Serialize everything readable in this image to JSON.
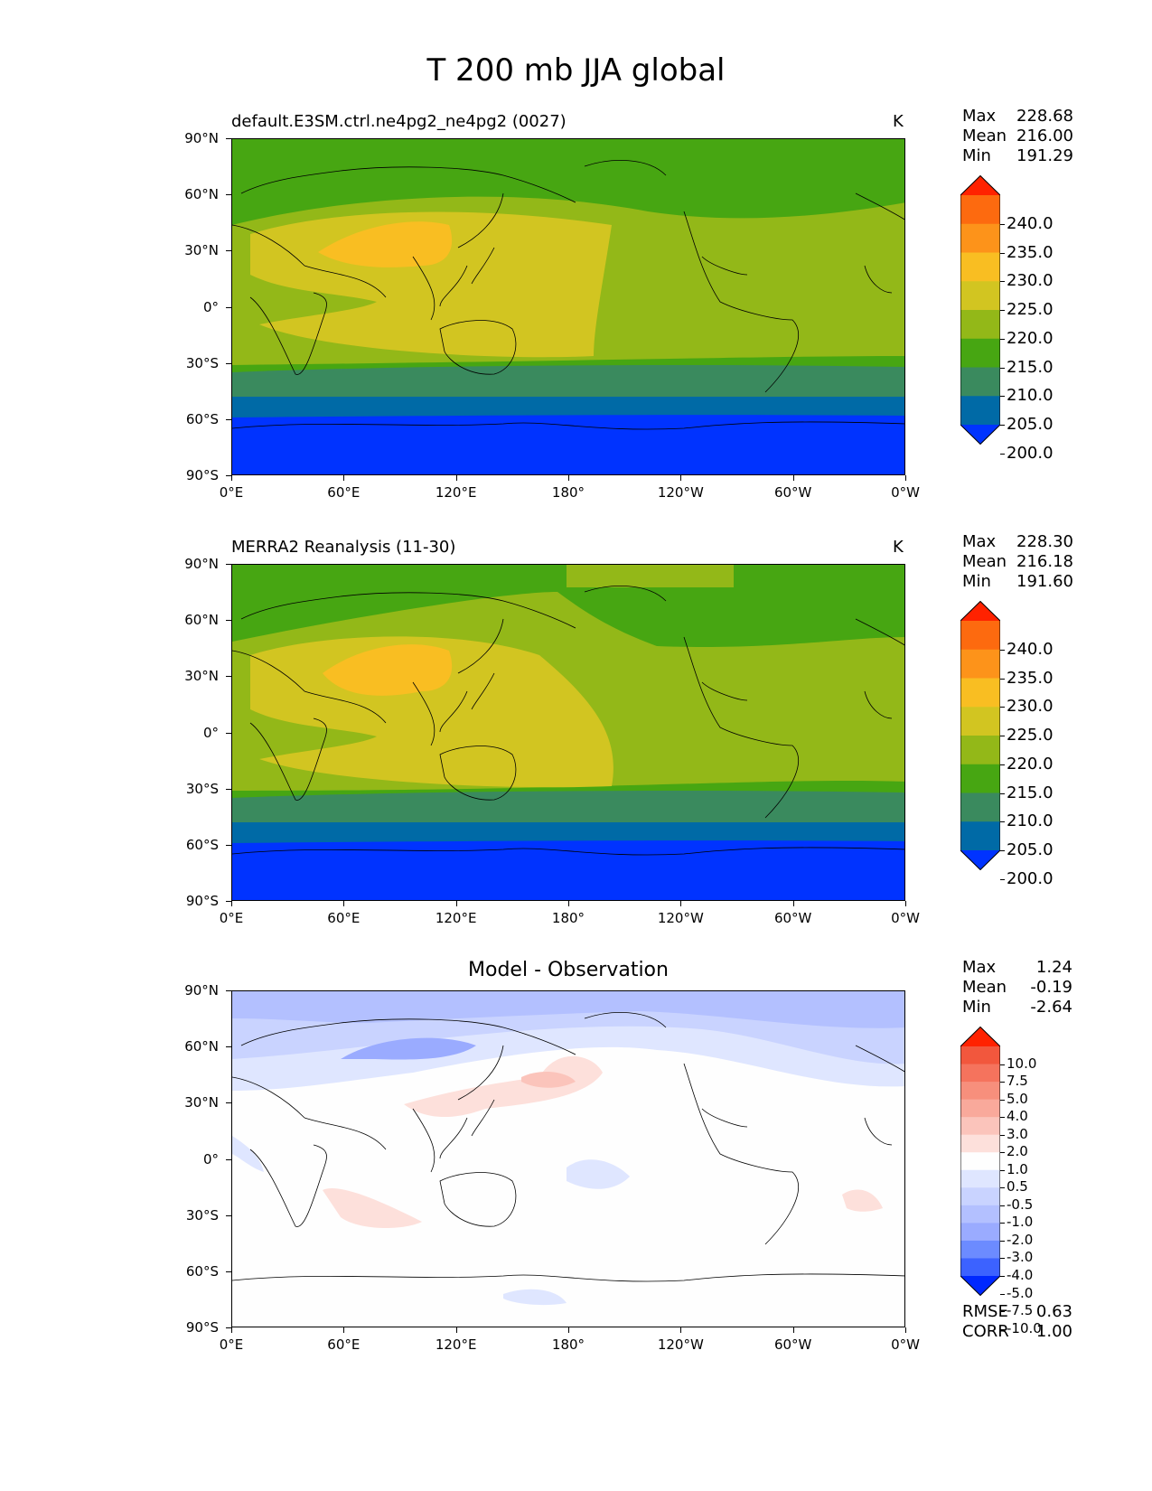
{
  "figure": {
    "title": "T 200 mb JJA global"
  },
  "axes": {
    "y_ticks": [
      "90°N",
      "60°N",
      "30°N",
      "0°",
      "30°S",
      "60°S",
      "90°S"
    ],
    "x_ticks": [
      "0°E",
      "60°E",
      "120°E",
      "180°",
      "120°W",
      "60°W",
      "0°W"
    ]
  },
  "panels": [
    {
      "title": "default.E3SM.ctrl.ne4pg2_ne4pg2 (0027)",
      "units": "K",
      "stats": [
        {
          "label": "Max",
          "value": "228.68"
        },
        {
          "label": "Mean",
          "value": "216.00"
        },
        {
          "label": "Min",
          "value": "191.29"
        }
      ],
      "colorbar": [
        "240.0",
        "235.0",
        "230.0",
        "225.0",
        "220.0",
        "215.0",
        "210.0",
        "205.0",
        "200.0"
      ]
    },
    {
      "title": "MERRA2 Reanalysis (11-30)",
      "units": "K",
      "stats": [
        {
          "label": "Max",
          "value": "228.30"
        },
        {
          "label": "Mean",
          "value": "216.18"
        },
        {
          "label": "Min",
          "value": "191.60"
        }
      ],
      "colorbar": [
        "240.0",
        "235.0",
        "230.0",
        "225.0",
        "220.0",
        "215.0",
        "210.0",
        "205.0",
        "200.0"
      ]
    },
    {
      "title": "Model - Observation",
      "stats": [
        {
          "label": "Max",
          "value": "1.24"
        },
        {
          "label": "Mean",
          "value": "-0.19"
        },
        {
          "label": "Min",
          "value": "-2.64"
        }
      ],
      "colorbar": [
        "10.0",
        "7.5",
        "5.0",
        "4.0",
        "3.0",
        "2.0",
        "1.0",
        "0.5",
        "-0.5",
        "-1.0",
        "-2.0",
        "-3.0",
        "-4.0",
        "-5.0",
        "-7.5",
        "-10.0"
      ],
      "metrics": [
        {
          "label": "RMSE",
          "value": "0.63"
        },
        {
          "label": "CORR",
          "value": "1.00"
        }
      ]
    }
  ],
  "colors": {
    "temp_levels": [
      "#0033ff",
      "#006aa6",
      "#3a8a5e",
      "#47a612",
      "#93b818",
      "#d2c521",
      "#f9be22",
      "#fd931a",
      "#fd6a0f",
      "#ff2200"
    ],
    "diff_levels": [
      "#0028ff",
      "#3c62ff",
      "#6c8bff",
      "#9aabff",
      "#b3c0ff",
      "#c9d3ff",
      "#dfe6ff",
      "#fefefe",
      "#fde0db",
      "#fbc4bb",
      "#f9a99b",
      "#f78f7c",
      "#f5735d",
      "#f2573d",
      "#ff2200"
    ]
  }
}
